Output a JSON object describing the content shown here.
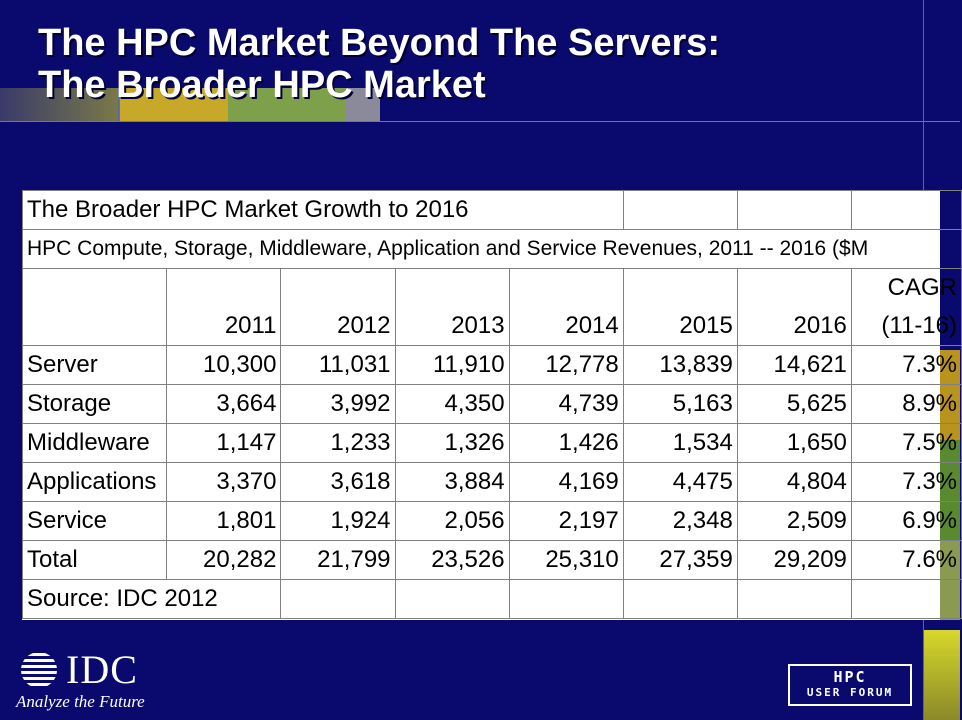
{
  "slide": {
    "title_line1": "The HPC Market Beyond The Servers:",
    "title_line2": "The Broader HPC Market"
  },
  "table": {
    "title": "The Broader HPC Market Growth to 2016",
    "subtitle": "HPC Compute, Storage, Middleware, Application and Service Revenues, 2011 -- 2016 ($M",
    "years": [
      "2011",
      "2012",
      "2013",
      "2014",
      "2015",
      "2016"
    ],
    "cagr_header_line1": "CAGR",
    "cagr_header_line2": "(11-16)",
    "rows": [
      {
        "label": "Server",
        "values": [
          "10,300",
          "11,031",
          "11,910",
          "12,778",
          "13,839",
          "14,621"
        ],
        "cagr": "7.3%"
      },
      {
        "label": "Storage",
        "values": [
          "3,664",
          "3,992",
          "4,350",
          "4,739",
          "5,163",
          "5,625"
        ],
        "cagr": "8.9%"
      },
      {
        "label": "Middleware",
        "values": [
          "1,147",
          "1,233",
          "1,326",
          "1,426",
          "1,534",
          "1,650"
        ],
        "cagr": "7.5%"
      },
      {
        "label": "Applications",
        "values": [
          "3,370",
          "3,618",
          "3,884",
          "4,169",
          "4,475",
          "4,804"
        ],
        "cagr": "7.3%"
      },
      {
        "label": "Service",
        "values": [
          "1,801",
          "1,924",
          "2,056",
          "2,197",
          "2,348",
          "2,509"
        ],
        "cagr": "6.9%"
      },
      {
        "label": "Total",
        "values": [
          "20,282",
          "21,799",
          "23,526",
          "25,310",
          "27,359",
          "29,209"
        ],
        "cagr": "7.6%"
      }
    ],
    "source": "Source: IDC 2012"
  },
  "logos": {
    "idc_name": "IDC",
    "idc_tagline": "Analyze the Future",
    "forum_line1": "HPC",
    "forum_line2": "USER FORUM"
  },
  "colors": {
    "background": "#0a0a6e",
    "band_gold": "#b8941c",
    "band_green": "#5a8a30",
    "band_lime": "#c8c82a",
    "band_olive": "#8a8a3c"
  }
}
